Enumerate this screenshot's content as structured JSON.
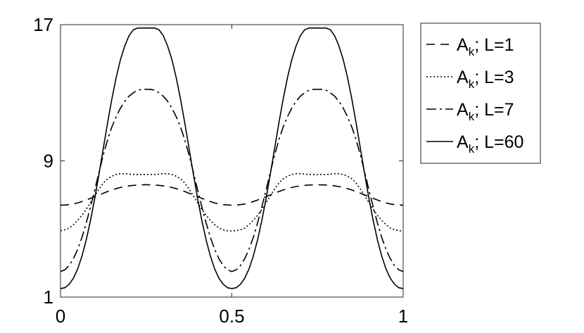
{
  "chart_data": {
    "type": "line",
    "title": "",
    "xlabel": "",
    "ylabel": "",
    "xlim": [
      0,
      1
    ],
    "ylim": [
      1,
      17
    ],
    "x_ticks": [
      0,
      0.5,
      1
    ],
    "x_tick_labels": [
      "0",
      "0.5",
      "1"
    ],
    "y_ticks": [
      1,
      9,
      17
    ],
    "y_tick_labels": [
      "1",
      "9",
      "17"
    ],
    "grid": false,
    "legend_position": "outside-right",
    "x": [
      0,
      0.0125,
      0.025,
      0.0375,
      0.05,
      0.0625,
      0.075,
      0.0875,
      0.1,
      0.1125,
      0.125,
      0.1375,
      0.15,
      0.1625,
      0.175,
      0.1875,
      0.2,
      0.2125,
      0.225,
      0.2375,
      0.25,
      0.2625,
      0.275,
      0.2875,
      0.3,
      0.3125,
      0.325,
      0.3375,
      0.35,
      0.3625,
      0.375,
      0.3875,
      0.4,
      0.4125,
      0.425,
      0.4375,
      0.45,
      0.4625,
      0.475,
      0.4875,
      0.5,
      0.5125,
      0.525,
      0.5375,
      0.55,
      0.5625,
      0.575,
      0.5875,
      0.6,
      0.6125,
      0.625,
      0.6375,
      0.65,
      0.6625,
      0.675,
      0.6875,
      0.7,
      0.7125,
      0.725,
      0.7375,
      0.75,
      0.7625,
      0.775,
      0.7875,
      0.8,
      0.8125,
      0.825,
      0.8375,
      0.85,
      0.8625,
      0.875,
      0.8875,
      0.9,
      0.9125,
      0.925,
      0.9375,
      0.95,
      0.9625,
      0.975,
      0.9875,
      1
    ],
    "series": [
      {
        "name": "A_k; L=1",
        "label_main": "A",
        "label_sub": "k",
        "label_rest": "; L=1",
        "dash": "12,8",
        "values": [
          6.4,
          6.41,
          6.43,
          6.47,
          6.53,
          6.61,
          6.7,
          6.8,
          6.9,
          7.0,
          7.1,
          7.2,
          7.29,
          7.37,
          7.44,
          7.49,
          7.53,
          7.56,
          7.58,
          7.59,
          7.6,
          7.59,
          7.58,
          7.56,
          7.53,
          7.49,
          7.44,
          7.37,
          7.29,
          7.2,
          7.1,
          7.0,
          6.9,
          6.8,
          6.7,
          6.61,
          6.53,
          6.47,
          6.43,
          6.41,
          6.4,
          6.41,
          6.43,
          6.47,
          6.53,
          6.61,
          6.7,
          6.8,
          6.9,
          7.0,
          7.1,
          7.2,
          7.29,
          7.37,
          7.44,
          7.49,
          7.53,
          7.56,
          7.58,
          7.59,
          7.6,
          7.59,
          7.58,
          7.56,
          7.53,
          7.49,
          7.44,
          7.37,
          7.29,
          7.2,
          7.1,
          7.0,
          6.9,
          6.8,
          6.7,
          6.61,
          6.53,
          6.47,
          6.43,
          6.41,
          6.4
        ]
      },
      {
        "name": "A_k; L=3",
        "label_main": "A",
        "label_sub": "k",
        "label_rest": "; L=3",
        "dash": "2,3",
        "values": [
          4.9,
          4.95,
          5.05,
          5.25,
          5.5,
          5.8,
          6.15,
          6.55,
          6.95,
          7.35,
          7.7,
          7.95,
          8.1,
          8.2,
          8.25,
          8.25,
          8.22,
          8.2,
          8.2,
          8.2,
          8.2,
          8.2,
          8.2,
          8.22,
          8.25,
          8.25,
          8.2,
          8.1,
          7.95,
          7.7,
          7.35,
          6.95,
          6.55,
          6.15,
          5.8,
          5.5,
          5.25,
          5.05,
          4.95,
          4.9,
          4.88,
          4.9,
          4.95,
          5.05,
          5.25,
          5.5,
          5.8,
          6.15,
          6.55,
          6.95,
          7.35,
          7.7,
          7.95,
          8.1,
          8.2,
          8.25,
          8.25,
          8.22,
          8.2,
          8.2,
          8.2,
          8.2,
          8.2,
          8.22,
          8.25,
          8.25,
          8.2,
          8.1,
          7.95,
          7.7,
          7.35,
          6.95,
          6.55,
          6.15,
          5.8,
          5.5,
          5.25,
          5.05,
          4.95,
          4.9,
          4.88
        ]
      },
      {
        "name": "A_k; L=7",
        "label_main": "A",
        "label_sub": "k",
        "label_rest": "; L=7",
        "dash": "14,5,3,5",
        "values": [
          2.5,
          2.6,
          2.85,
          3.25,
          3.8,
          4.5,
          5.35,
          6.3,
          7.3,
          8.35,
          9.35,
          10.25,
          11.0,
          11.6,
          12.1,
          12.5,
          12.8,
          13.0,
          13.15,
          13.2,
          13.2,
          13.2,
          13.15,
          13.0,
          12.8,
          12.5,
          12.1,
          11.6,
          11.0,
          10.25,
          9.35,
          8.35,
          7.3,
          6.3,
          5.35,
          4.5,
          3.8,
          3.25,
          2.85,
          2.6,
          2.5,
          2.6,
          2.85,
          3.25,
          3.8,
          4.5,
          5.35,
          6.3,
          7.3,
          8.35,
          9.35,
          10.25,
          11.0,
          11.6,
          12.1,
          12.5,
          12.8,
          13.0,
          13.15,
          13.2,
          13.2,
          13.2,
          13.15,
          13.0,
          12.8,
          12.5,
          12.1,
          11.6,
          11.0,
          10.25,
          9.35,
          8.35,
          7.3,
          6.3,
          5.35,
          4.5,
          3.8,
          3.25,
          2.85,
          2.6,
          2.5
        ]
      },
      {
        "name": "A_k; L=60",
        "label_main": "A",
        "label_sub": "k",
        "label_rest": "; L=60",
        "dash": "",
        "values": [
          1.5,
          1.55,
          1.75,
          2.1,
          2.65,
          3.4,
          4.35,
          5.5,
          6.8,
          8.25,
          9.75,
          11.25,
          12.65,
          13.9,
          14.95,
          15.75,
          16.35,
          16.7,
          16.8,
          16.8,
          16.8,
          16.8,
          16.8,
          16.7,
          16.35,
          15.75,
          14.95,
          13.9,
          12.65,
          11.25,
          9.75,
          8.25,
          6.8,
          5.5,
          4.35,
          3.4,
          2.65,
          2.1,
          1.75,
          1.55,
          1.5,
          1.55,
          1.75,
          2.1,
          2.65,
          3.4,
          4.35,
          5.5,
          6.8,
          8.25,
          9.75,
          11.25,
          12.65,
          13.9,
          14.95,
          15.75,
          16.35,
          16.7,
          16.8,
          16.8,
          16.8,
          16.8,
          16.8,
          16.7,
          16.35,
          15.75,
          14.95,
          13.9,
          12.65,
          11.25,
          9.75,
          8.25,
          6.8,
          5.5,
          4.35,
          3.4,
          2.65,
          2.1,
          1.75,
          1.55,
          1.5
        ]
      }
    ]
  }
}
